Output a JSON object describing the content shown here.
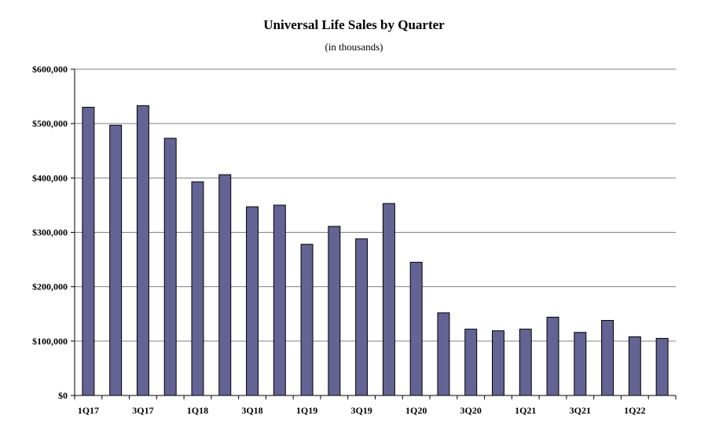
{
  "chart_data": {
    "type": "bar",
    "title": "Universal Life Sales by Quarter",
    "subtitle": "(in thousands)",
    "xlabel": "",
    "ylabel": "",
    "categories": [
      "1Q17",
      "2Q17",
      "3Q17",
      "4Q17",
      "1Q18",
      "2Q18",
      "3Q18",
      "4Q18",
      "1Q19",
      "2Q19",
      "3Q19",
      "4Q19",
      "1Q20",
      "2Q20",
      "3Q20",
      "4Q20",
      "1Q21",
      "2Q21",
      "3Q21",
      "4Q21",
      "1Q22",
      "2Q22"
    ],
    "x_tick_labels": [
      "1Q17",
      "",
      "3Q17",
      "",
      "1Q18",
      "",
      "3Q18",
      "",
      "1Q19",
      "",
      "3Q19",
      "",
      "1Q20",
      "",
      "3Q20",
      "",
      "1Q21",
      "",
      "3Q21",
      "",
      "1Q22",
      ""
    ],
    "values": [
      530000,
      497000,
      533000,
      473000,
      393000,
      406000,
      347000,
      350000,
      278000,
      311000,
      288000,
      353000,
      245000,
      152000,
      122000,
      119000,
      122000,
      144000,
      116000,
      138000,
      108000,
      105000
    ],
    "ylim": [
      0,
      600000
    ],
    "y_ticks": [
      0,
      100000,
      200000,
      300000,
      400000,
      500000,
      600000
    ],
    "y_tick_labels": [
      "$0",
      "$100,000",
      "$200,000",
      "$300,000",
      "$400,000",
      "$500,000",
      "$600,000"
    ],
    "grid": true,
    "legend": "none",
    "bar_color": "#636394",
    "bar_edge_color": "#000000",
    "grid_color": "#808080"
  }
}
